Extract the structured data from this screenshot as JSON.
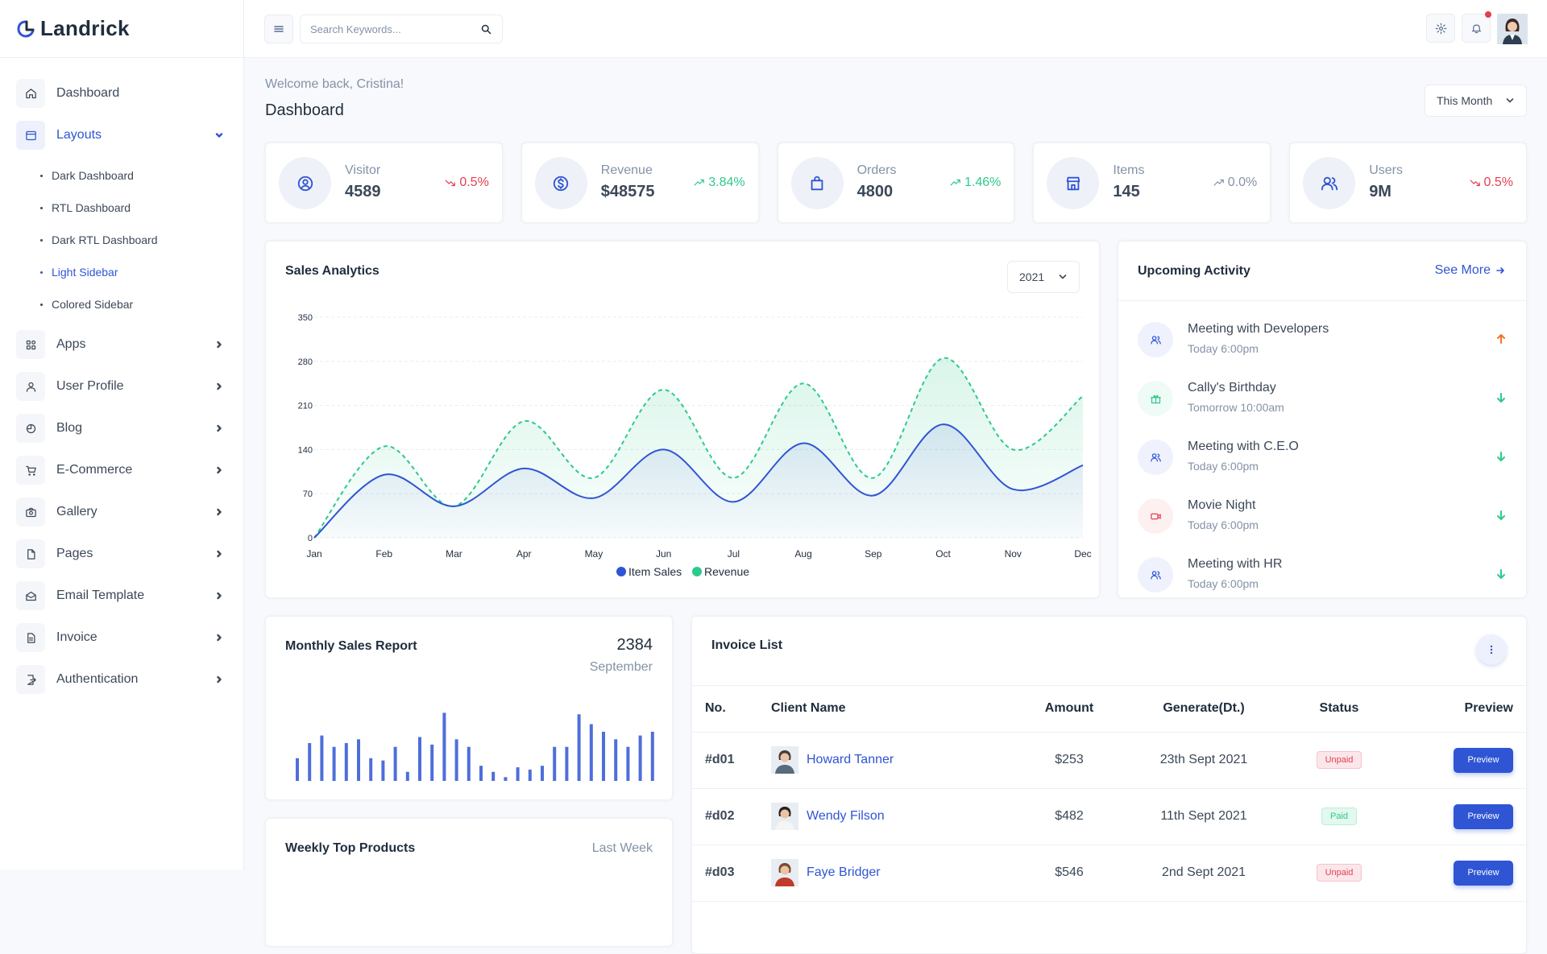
{
  "brand": {
    "name": "Landrick"
  },
  "sidebar": {
    "items": [
      {
        "label": "Dashboard",
        "icon": "home-icon"
      },
      {
        "label": "Layouts",
        "icon": "layout-icon",
        "active": true,
        "expanded": true,
        "children": [
          "Dark Dashboard",
          "RTL Dashboard",
          "Dark RTL Dashboard",
          "Light Sidebar",
          "Colored Sidebar"
        ],
        "active_child": "Light Sidebar"
      },
      {
        "label": "Apps",
        "icon": "apps-icon"
      },
      {
        "label": "User Profile",
        "icon": "user-icon"
      },
      {
        "label": "Blog",
        "icon": "blog-icon"
      },
      {
        "label": "E-Commerce",
        "icon": "cart-icon"
      },
      {
        "label": "Gallery",
        "icon": "camera-icon"
      },
      {
        "label": "Pages",
        "icon": "file-icon"
      },
      {
        "label": "Email Template",
        "icon": "mail-icon"
      },
      {
        "label": "Invoice",
        "icon": "invoice-icon"
      },
      {
        "label": "Authentication",
        "icon": "login-icon"
      }
    ]
  },
  "topbar": {
    "search_placeholder": "Search Keywords..."
  },
  "header": {
    "welcome": "Welcome back, Cristina!",
    "title": "Dashboard",
    "period": "This Month"
  },
  "stats": [
    {
      "label": "Visitor",
      "value": "4589",
      "change": "0.5%",
      "trend": "down",
      "icon": "user-circle-icon"
    },
    {
      "label": "Revenue",
      "value": "$48575",
      "change": "3.84%",
      "trend": "up",
      "icon": "dollar-circle-icon"
    },
    {
      "label": "Orders",
      "value": "4800",
      "change": "1.46%",
      "trend": "up",
      "icon": "shopping-bag-icon"
    },
    {
      "label": "Items",
      "value": "145",
      "change": "0.0%",
      "trend": "flat",
      "icon": "store-icon"
    },
    {
      "label": "Users",
      "value": "9M",
      "change": "0.5%",
      "trend": "down",
      "icon": "users-icon"
    }
  ],
  "colors": {
    "primary": "#2f55d4",
    "success": "#2eca8b",
    "danger": "#e43f52",
    "muted": "#8492a6",
    "warning": "#f17425"
  },
  "sales": {
    "title": "Sales Analytics",
    "year": "2021",
    "chart_data": {
      "type": "area",
      "categories": [
        "Jan",
        "Feb",
        "Mar",
        "Apr",
        "May",
        "Jun",
        "Jul",
        "Aug",
        "Sep",
        "Oct",
        "Nov",
        "Dec"
      ],
      "series": [
        {
          "name": "Item Sales",
          "values": [
            0,
            100,
            50,
            110,
            63,
            140,
            57,
            150,
            67,
            180,
            77,
            115
          ]
        },
        {
          "name": "Revenue",
          "values": [
            0,
            145,
            50,
            185,
            95,
            235,
            95,
            245,
            95,
            285,
            140,
            225
          ]
        }
      ],
      "ylim": [
        0,
        350
      ],
      "yticks": [
        0,
        70,
        140,
        210,
        280,
        350
      ],
      "grid": true,
      "legend": "bottom"
    }
  },
  "activity": {
    "title": "Upcoming Activity",
    "see_more": "See More",
    "items": [
      {
        "title": "Meeting with Developers",
        "time": "Today 6:00pm",
        "icon": "users-icon",
        "color": "#2f55d4",
        "arrow": "up",
        "arrow_color": "#f17425"
      },
      {
        "title": "Cally's Birthday",
        "time": "Tomorrow 10:00am",
        "icon": "gift-icon",
        "color": "#2eca8b",
        "arrow": "down",
        "arrow_color": "#2eca8b"
      },
      {
        "title": "Meeting with C.E.O",
        "time": "Today 6:00pm",
        "icon": "users-icon",
        "color": "#2f55d4",
        "arrow": "down",
        "arrow_color": "#2eca8b"
      },
      {
        "title": "Movie Night",
        "time": "Today 6:00pm",
        "icon": "video-icon",
        "color": "#e43f52",
        "arrow": "down",
        "arrow_color": "#2eca8b"
      },
      {
        "title": "Meeting with HR",
        "time": "Today 6:00pm",
        "icon": "users-icon",
        "color": "#2f55d4",
        "arrow": "down",
        "arrow_color": "#2eca8b"
      }
    ]
  },
  "monthly": {
    "title": "Monthly Sales Report",
    "value": "2384",
    "month": "September",
    "chart_data": {
      "type": "bar",
      "values": [
        30,
        50,
        60,
        45,
        50,
        55,
        30,
        27,
        45,
        12,
        58,
        48,
        90,
        55,
        45,
        20,
        12,
        5,
        18,
        15,
        20,
        45,
        45,
        88,
        75,
        65,
        55,
        45,
        60,
        65
      ]
    }
  },
  "weekly": {
    "title": "Weekly Top Products",
    "period": "Last Week"
  },
  "invoice": {
    "title": "Invoice List",
    "columns": [
      "No.",
      "Client Name",
      "Amount",
      "Generate(Dt.)",
      "Status",
      "Preview"
    ],
    "rows": [
      {
        "no": "#d01",
        "client": "Howard Tanner",
        "amount": "$253",
        "date": "23th Sept 2021",
        "status": "Unpaid",
        "preview": "Preview"
      },
      {
        "no": "#d02",
        "client": "Wendy Filson",
        "amount": "$482",
        "date": "11th Sept 2021",
        "status": "Paid",
        "preview": "Preview"
      },
      {
        "no": "#d03",
        "client": "Faye Bridger",
        "amount": "$546",
        "date": "2nd Sept 2021",
        "status": "Unpaid",
        "preview": "Preview"
      }
    ]
  }
}
